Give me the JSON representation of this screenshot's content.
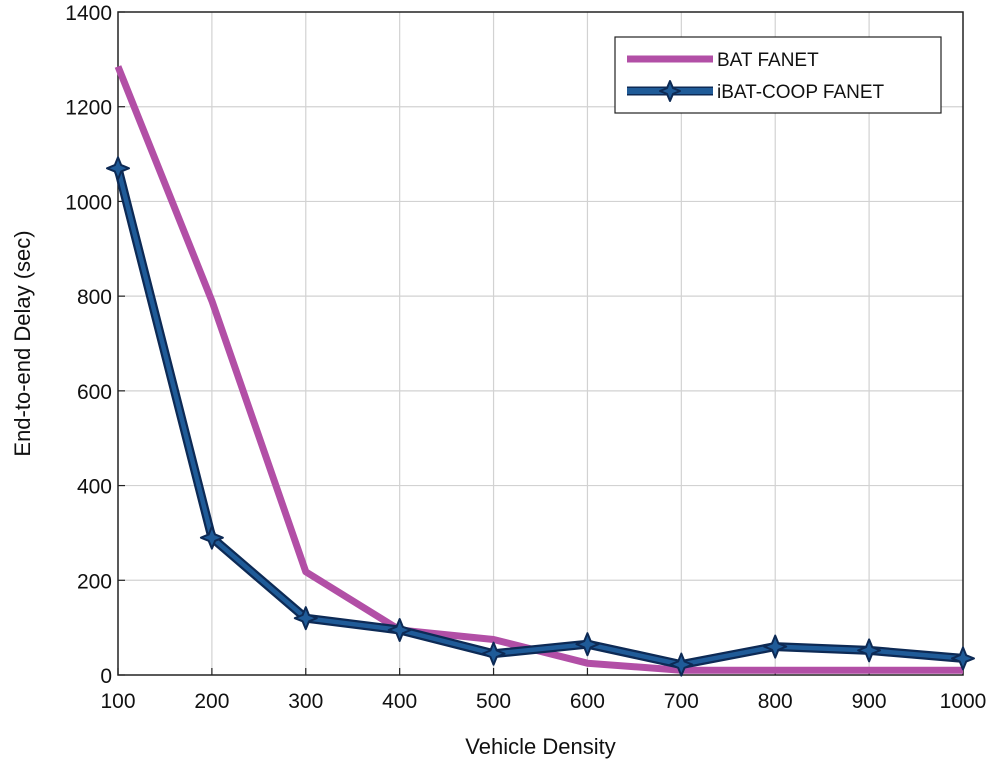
{
  "chart_data": {
    "type": "line",
    "xlabel": "Vehicle Density",
    "ylabel": "End-to-end Delay (sec)",
    "xlim": [
      100,
      1000
    ],
    "ylim": [
      0,
      1400
    ],
    "xticks": [
      100,
      200,
      300,
      400,
      500,
      600,
      700,
      800,
      900,
      1000
    ],
    "yticks": [
      0,
      200,
      400,
      600,
      800,
      1000,
      1200,
      1400
    ],
    "grid": true,
    "legend_position": "top-right",
    "x": [
      100,
      200,
      300,
      400,
      500,
      600,
      700,
      800,
      900,
      1000
    ],
    "series": [
      {
        "name": "BAT FANET",
        "color": "#b24fa6",
        "marker": "none",
        "values": [
          1285,
          790,
          218,
          95,
          75,
          25,
          10,
          10,
          10,
          10
        ]
      },
      {
        "name": "iBAT-COOP FANET",
        "color": "#1f5b98",
        "edge_color": "#0d2a55",
        "marker": "star",
        "values": [
          1070,
          290,
          120,
          95,
          45,
          65,
          22,
          60,
          52,
          35
        ]
      }
    ]
  }
}
